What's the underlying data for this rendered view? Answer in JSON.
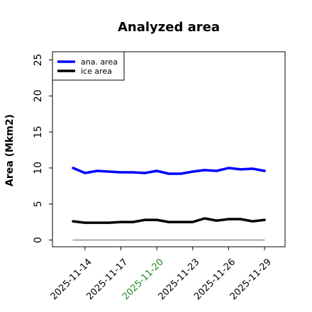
{
  "chart_data": {
    "type": "line",
    "title": "Analyzed area",
    "xlabel": "",
    "ylabel": "Area (Mkm2)",
    "ylim": [
      0,
      26
    ],
    "yticks": [
      0,
      5,
      10,
      15,
      20,
      25
    ],
    "x": [
      "2025-11-13",
      "2025-11-14",
      "2025-11-15",
      "2025-11-16",
      "2025-11-17",
      "2025-11-18",
      "2025-11-19",
      "2025-11-20",
      "2025-11-21",
      "2025-11-22",
      "2025-11-23",
      "2025-11-24",
      "2025-11-25",
      "2025-11-26",
      "2025-11-27",
      "2025-11-28",
      "2025-11-29"
    ],
    "xticks": [
      {
        "label": "2025-11-14",
        "color": "#000000"
      },
      {
        "label": "2025-11-17",
        "color": "#000000"
      },
      {
        "label": "2025-11-20",
        "color": "#228b22"
      },
      {
        "label": "2025-11-23",
        "color": "#000000"
      },
      {
        "label": "2025-11-26",
        "color": "#000000"
      },
      {
        "label": "2025-11-29",
        "color": "#000000"
      }
    ],
    "series": [
      {
        "name": "ana. area",
        "color": "#0000ff",
        "values": [
          10.0,
          9.3,
          9.6,
          9.5,
          9.4,
          9.4,
          9.3,
          9.6,
          9.2,
          9.2,
          9.5,
          9.7,
          9.6,
          10.0,
          9.8,
          9.9,
          9.6
        ]
      },
      {
        "name": "ice area",
        "color": "#000000",
        "values": [
          2.6,
          2.4,
          2.4,
          2.4,
          2.5,
          2.5,
          2.8,
          2.8,
          2.5,
          2.5,
          2.5,
          3.0,
          2.7,
          2.9,
          2.9,
          2.6,
          2.8
        ]
      },
      {
        "name": "",
        "color": "#808080",
        "values": [
          0,
          0,
          0,
          0,
          0,
          0,
          0,
          0,
          0,
          0,
          0,
          0,
          0,
          0,
          0,
          0,
          0
        ]
      }
    ],
    "legend_position": "top-left",
    "grid": false
  }
}
